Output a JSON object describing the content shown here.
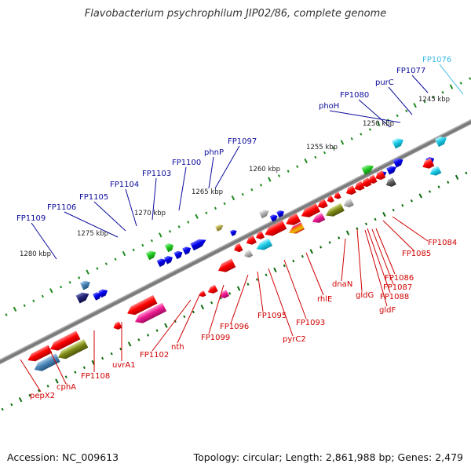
{
  "title": "Flavobacterium psychrophilum JIP02/86, complete genome",
  "footer": {
    "accession": "Accession: NC_009613",
    "summary": "Topology: circular; Length: 2,861,988 bp; Genes: 2,479"
  },
  "colors": {
    "backbone": "#8c8c8c",
    "forward_label": "#0b0b9c",
    "reverse_label": "#d00000",
    "highlight_label": "#39b9e6",
    "tick_forward": "#1d8a1d",
    "tick_reverse": "#0c6b0c"
  },
  "scale_ticks": [
    "1245 kbp",
    "1250 kbp",
    "1255 kbp",
    "1260 kbp",
    "1265 kbp",
    "1270 kbp",
    "1275 kbp",
    "1280 kbp"
  ],
  "forward_labels": [
    "FP1076",
    "FP1077",
    "purC",
    "FP1080",
    "phoH",
    "FP1097",
    "phnP",
    "FP1100",
    "FP1103",
    "FP1104",
    "FP1105",
    "FP1106",
    "FP1109"
  ],
  "reverse_labels": [
    "FP1084",
    "FP1085",
    "FP1086",
    "FP1087",
    "FP1088",
    "gldF",
    "gldG",
    "dnaN",
    "rhlE",
    "FP1093",
    "pyrC2",
    "FP1095",
    "FP1096",
    "FP1099",
    "nth",
    "FP1102",
    "uvrA1",
    "FP1108",
    "cphA",
    "pepX2"
  ]
}
